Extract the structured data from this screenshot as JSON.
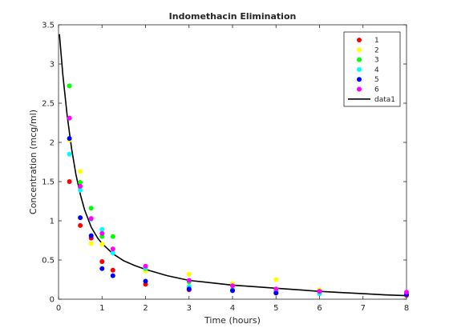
{
  "chart_data": {
    "type": "scatter",
    "title": "Indomethacin Elimination",
    "xlabel": "Time (hours)",
    "ylabel": "Concentration (mcg/ml)",
    "xlim": [
      0,
      8
    ],
    "ylim": [
      0,
      3.5
    ],
    "xticks": [
      0,
      1,
      2,
      3,
      4,
      5,
      6,
      7,
      8
    ],
    "yticks": [
      0,
      0.5,
      1,
      1.5,
      2,
      2.5,
      3,
      3.5
    ],
    "grid": false,
    "legend_position": "top-right",
    "x": [
      0.25,
      0.5,
      0.75,
      1,
      1.25,
      2,
      3,
      4,
      5,
      6,
      8
    ],
    "series": [
      {
        "name": "1",
        "color": "#ff0000",
        "values": [
          1.5,
          0.94,
          0.78,
          0.48,
          0.37,
          0.19,
          0.12,
          0.11,
          0.08,
          0.07,
          0.05
        ]
      },
      {
        "name": "2",
        "color": "#ffff00",
        "values": [
          2.03,
          1.63,
          0.71,
          0.7,
          0.64,
          0.36,
          0.32,
          0.2,
          0.25,
          0.12,
          0.08
        ]
      },
      {
        "name": "3",
        "color": "#00ff00",
        "values": [
          2.72,
          1.49,
          1.16,
          0.8,
          0.8,
          0.39,
          0.22,
          0.12,
          0.11,
          0.08,
          0.08
        ]
      },
      {
        "name": "4",
        "color": "#00ffff",
        "values": [
          1.85,
          1.39,
          1.02,
          0.89,
          0.59,
          0.4,
          0.16,
          0.11,
          0.1,
          0.07,
          0.07
        ]
      },
      {
        "name": "5",
        "color": "#0000ff",
        "values": [
          2.05,
          1.04,
          0.81,
          0.39,
          0.3,
          0.23,
          0.13,
          0.11,
          0.08,
          0.1,
          0.06
        ]
      },
      {
        "name": "6",
        "color": "#ff00ff",
        "values": [
          2.31,
          1.44,
          1.03,
          0.84,
          0.64,
          0.42,
          0.24,
          0.17,
          0.13,
          0.1,
          0.09
        ]
      }
    ],
    "fit_line": {
      "name": "data1",
      "color": "#000000",
      "x": [
        0.02,
        0.1,
        0.2,
        0.3,
        0.4,
        0.5,
        0.6,
        0.75,
        0.9,
        1.0,
        1.25,
        1.5,
        1.75,
        2.0,
        2.5,
        3.0,
        3.5,
        4.0,
        4.5,
        5.0,
        5.5,
        6.0,
        6.5,
        7.0,
        7.5,
        8.0
      ],
      "y": [
        3.38,
        2.86,
        2.34,
        1.92,
        1.59,
        1.34,
        1.14,
        0.92,
        0.78,
        0.71,
        0.58,
        0.49,
        0.43,
        0.38,
        0.3,
        0.24,
        0.21,
        0.18,
        0.16,
        0.14,
        0.12,
        0.1,
        0.085,
        0.07,
        0.055,
        0.045
      ]
    }
  }
}
